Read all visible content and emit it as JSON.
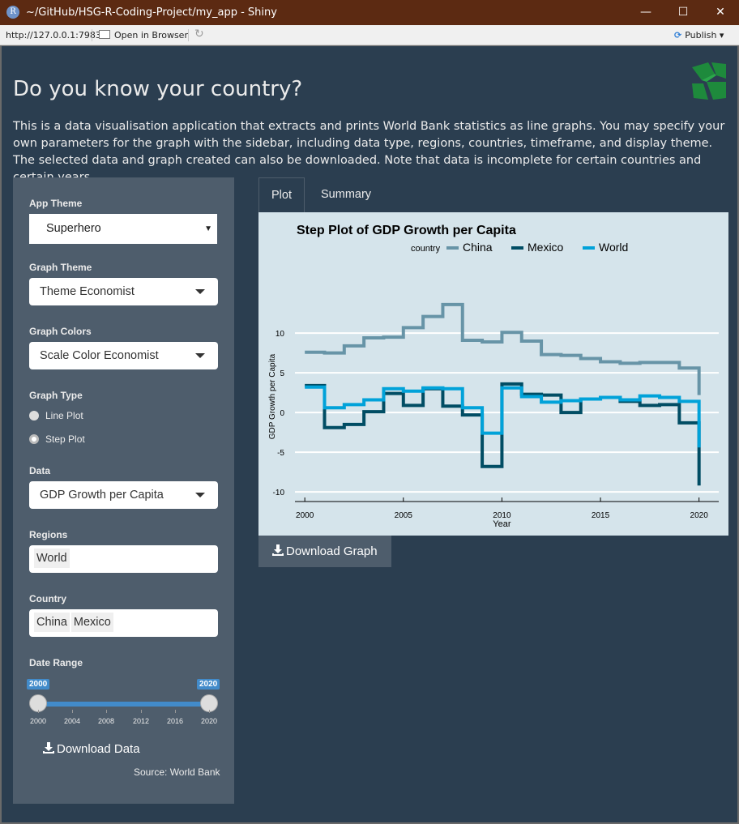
{
  "window": {
    "title": "~/GitHub/HSG-R-Coding-Project/my_app - Shiny",
    "app_icon": "R",
    "minimize": "—",
    "maximize": "☐",
    "close": "✕"
  },
  "toolbar": {
    "url": "http://127.0.0.1:7983",
    "open_browser": "Open in Browser",
    "publish": "Publish"
  },
  "app": {
    "title": "Do you know your country?",
    "intro": "This is a data visualisation application that extracts and prints World Bank statistics as line graphs. You may specify your own parameters for the graph with the sidebar, including data type, regions, countries, timeframe, and display theme. The selected data and graph created can also be downloaded. Note that data is incomplete for certain countries and certain years."
  },
  "sidebar": {
    "app_theme_label": "App Theme",
    "app_theme_value": "Superhero",
    "graph_theme_label": "Graph Theme",
    "graph_theme_value": "Theme Economist",
    "graph_colors_label": "Graph Colors",
    "graph_colors_value": "Scale Color Economist",
    "graph_type_label": "Graph Type",
    "graph_type_options": [
      "Line Plot",
      "Step Plot"
    ],
    "graph_type_selected": "Step Plot",
    "data_label": "Data",
    "data_value": "GDP Growth per Capita",
    "regions_label": "Regions",
    "regions_values": [
      "World"
    ],
    "country_label": "Country",
    "country_values": [
      "China",
      "Mexico"
    ],
    "date_range_label": "Date Range",
    "date_range": {
      "min": 2000,
      "max": 2020,
      "from": 2000,
      "to": 2020
    },
    "date_ticks": [
      "2000",
      "2004",
      "2008",
      "2012",
      "2016",
      "2020"
    ],
    "date_from_label": "2000",
    "date_to_label": "2020",
    "download_data": "Download Data",
    "source": "Source: World Bank"
  },
  "tabs": [
    {
      "label": "Plot",
      "active": true
    },
    {
      "label": "Summary",
      "active": false
    }
  ],
  "download_graph": "Download Graph",
  "colors": {
    "background": "#2b3e50",
    "sidebar": "#4e5d6c",
    "plot_bg": "#d5e4eb",
    "china": "#6794a7",
    "mexico": "#014d64",
    "world": "#01a2d9",
    "slider": "#428bca"
  },
  "chart_data": {
    "type": "line",
    "step": true,
    "title": "Step Plot of GDP Growth per Capita",
    "xlabel": "Year",
    "ylabel": "GDP Growth per Capita",
    "legend_title": "country",
    "legend_position": "top",
    "xlim": [
      1999.5,
      2021
    ],
    "ylim": [
      -10.5,
      14
    ],
    "xticks": [
      2000,
      2005,
      2010,
      2015,
      2020
    ],
    "yticks": [
      -10,
      -5,
      0,
      5,
      10
    ],
    "ytick_labels": [
      "-10",
      "-5",
      "0",
      "5",
      "10"
    ],
    "grid": true,
    "x": [
      2000,
      2001,
      2002,
      2003,
      2004,
      2005,
      2006,
      2007,
      2008,
      2009,
      2010,
      2011,
      2012,
      2013,
      2014,
      2015,
      2016,
      2017,
      2018,
      2019,
      2020
    ],
    "series": [
      {
        "name": "China",
        "color": "#6794a7",
        "values": [
          7.6,
          7.5,
          8.4,
          9.4,
          9.5,
          10.7,
          12.1,
          13.6,
          9.1,
          8.9,
          10.1,
          9.0,
          7.3,
          7.2,
          6.8,
          6.4,
          6.2,
          6.3,
          6.3,
          5.6,
          2.2
        ]
      },
      {
        "name": "Mexico",
        "color": "#014d64",
        "values": [
          3.4,
          -1.9,
          -1.5,
          0.1,
          2.4,
          0.9,
          3.0,
          0.8,
          -0.3,
          -6.8,
          3.6,
          2.3,
          2.2,
          0.0,
          1.7,
          1.9,
          1.4,
          0.9,
          1.0,
          -1.3,
          -9.2
        ]
      },
      {
        "name": "World",
        "color": "#01a2d9",
        "values": [
          3.2,
          0.6,
          1.0,
          1.6,
          3.0,
          2.7,
          3.1,
          3.0,
          0.6,
          -2.6,
          3.1,
          2.0,
          1.3,
          1.5,
          1.7,
          1.9,
          1.6,
          2.1,
          1.9,
          1.4,
          -4.4
        ]
      }
    ]
  }
}
